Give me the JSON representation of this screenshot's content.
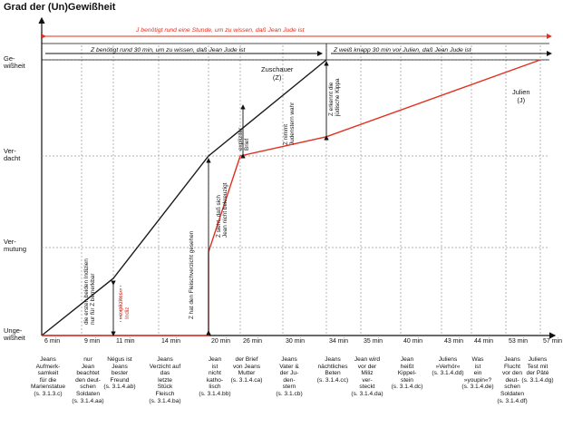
{
  "title": "Grad der (Un)Gewißheit",
  "y_levels": [
    "Ge-\nwißheit",
    "Ver-\ndacht",
    "Ver-\nmutung",
    "Unge-\nwißheit"
  ],
  "time_ticks": [
    "6 min",
    "9 min",
    "11 min",
    "14 min",
    "20 min",
    "26 min",
    "30 min",
    "34 min",
    "35 min",
    "40 min",
    "43 min",
    "44 min",
    "53 min",
    "57 min"
  ],
  "categories": [
    "Jeans\nAufmerk-\nsamkeit\nfür die\nMarienstatue\n(s. 3.1.3.c)",
    "nur\nJean\nbeachtet\nden deut-\nschen\nSoldaten\n(s. 3.1.4.aa)",
    "Négus ist\nJeans\nbester\nFreund\n(s. 3.1.4.ab)",
    "Jeans\nVerzicht auf\ndas\nletzte\nStück\nFleisch\n(s. 3.1.4.ba)",
    "Jean\nist\nnicht\nkatho-\nlisch\n(s. 3.1.4.bb)",
    "der Brief\nvon Jeans\nMutter\n(s. 3.1.4.ca)",
    "Jeans\nVater &\nder Ju-\nden-\nstern\n(s. 3.1.cb)",
    "Jeans\nnächtliches\nBeten\n(s. 3.1.4.cc)",
    "Jean wird\nvor der\nMiliz\nver-\nsteckt\n(s. 3.1.4.da)",
    "Jean\nheißt\nKippel-\nstein\n(s. 3.1.4.dc)",
    "Juliens\n»Verhör«\n(s. 3.1.4.dd)",
    "Was\nist\nein\n»youpin«?\n(s. 3.1.4.de)",
    "Jeans\nFlucht\nvor den\ndeut-\nschen\nSoldaten\n(s. 3.1.4.df)",
    "Juliens\nTest mit\nder Pâté\n(s. 3.1.4.dg)"
  ],
  "banners": {
    "top": "J benötigt rund eine Stunde, um zu wissen, daß Jean Jude ist",
    "left": "Z benötigt rund 30 min, um zu wissen, daß Jean Jude ist",
    "right": "Z weiß knapp 30 min vor Julien, daß Jean Jude ist"
  },
  "series": [
    {
      "name": "Zuschauer\n(Z)",
      "color": "#1a1a1a",
      "points": [
        [
          "6 min",
          0
        ],
        [
          "11 min",
          0.65
        ],
        [
          "20 min",
          2
        ],
        [
          "34 min",
          3
        ]
      ]
    },
    {
      "name": "Julien\n(J)",
      "color": "#e03020",
      "points": [
        [
          "6 min",
          0
        ],
        [
          "11 min",
          0
        ],
        [
          "20 min",
          0
        ],
        [
          "20 min",
          0.95
        ],
        [
          "26 min",
          2
        ],
        [
          "34 min",
          2.2
        ],
        [
          "57 min",
          3
        ]
      ]
    }
  ],
  "annotations": {
    "indizien": "die ersten beiden Indizien\nnur für Z bemerkbar",
    "explizites_indiz": "»explizites«\nIndiz",
    "fleischverzicht": "Z hat den Fleischverzicht gesehen",
    "sieht": "Z sieht, daß sich\nJean nicht bekreuzigt",
    "expliziter_brief": "expliziter\nBrief",
    "stern": "Z nimmt\nJudenstern wahr",
    "kippa": "Z erkennt die\njüdische Kippa"
  },
  "colors": {
    "zuschauer": "#1a1a1a",
    "julien": "#e03020",
    "grid": "#999999",
    "banner_arrow": "#e03020"
  }
}
